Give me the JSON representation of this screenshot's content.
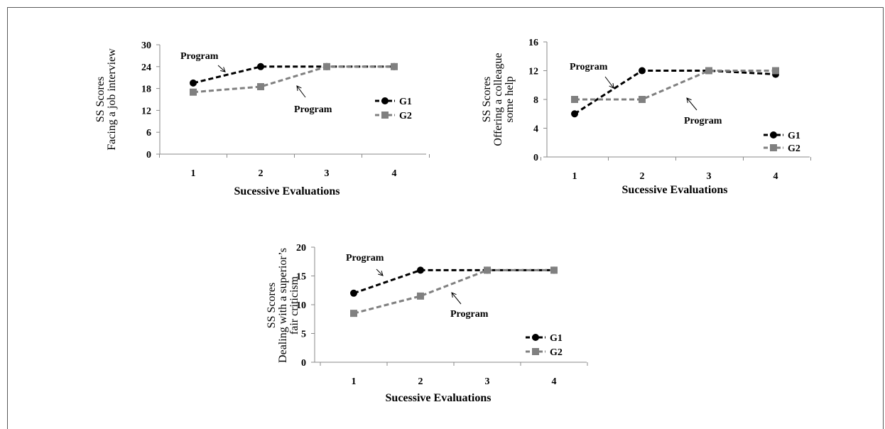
{
  "chart_data": [
    {
      "type": "line",
      "categories": [
        "1",
        "2",
        "3",
        "4"
      ],
      "series": [
        {
          "name": "G1",
          "values": [
            19.5,
            24,
            24,
            24
          ],
          "color": "#000000",
          "marker": "circle"
        },
        {
          "name": "G2",
          "values": [
            17,
            18.5,
            24,
            24
          ],
          "color": "#808080",
          "marker": "square"
        }
      ],
      "yticks": [
        "0",
        "6",
        "12",
        "18",
        "24",
        "30"
      ],
      "ylim": [
        0,
        30
      ],
      "xlabel": "Sucessive Evaluations",
      "ylabel": [
        "SS Scores",
        "Facing a job interview"
      ],
      "annotations": [
        "Program",
        "Program"
      ],
      "legend": "right"
    },
    {
      "type": "line",
      "categories": [
        "1",
        "2",
        "3",
        "4"
      ],
      "series": [
        {
          "name": "G1",
          "values": [
            6,
            12,
            12,
            11.5
          ],
          "color": "#000000",
          "marker": "circle"
        },
        {
          "name": "G2",
          "values": [
            8,
            8,
            12,
            12
          ],
          "color": "#808080",
          "marker": "square"
        }
      ],
      "yticks": [
        "0",
        "4",
        "8",
        "12",
        "16"
      ],
      "ylim": [
        0,
        16
      ],
      "xlabel": "Sucessive Evaluations",
      "ylabel": [
        "SS Scores",
        "Offering a colleague",
        "some help"
      ],
      "annotations": [
        "Program",
        "Program"
      ],
      "legend": "bottom-right"
    },
    {
      "type": "line",
      "categories": [
        "1",
        "2",
        "3",
        "4"
      ],
      "series": [
        {
          "name": "G1",
          "values": [
            12,
            16,
            16,
            16
          ],
          "color": "#000000",
          "marker": "circle"
        },
        {
          "name": "G2",
          "values": [
            8.5,
            11.5,
            16,
            16
          ],
          "color": "#808080",
          "marker": "square"
        }
      ],
      "yticks": [
        "0",
        "5",
        "10",
        "15",
        "20"
      ],
      "ylim": [
        0,
        20
      ],
      "xlabel": "Sucessive Evaluations",
      "ylabel": [
        "SS Scores",
        "Dealing with a superior’s",
        "fair criticism"
      ],
      "annotations": [
        "Program",
        "Program"
      ],
      "legend": "bottom-right"
    }
  ]
}
